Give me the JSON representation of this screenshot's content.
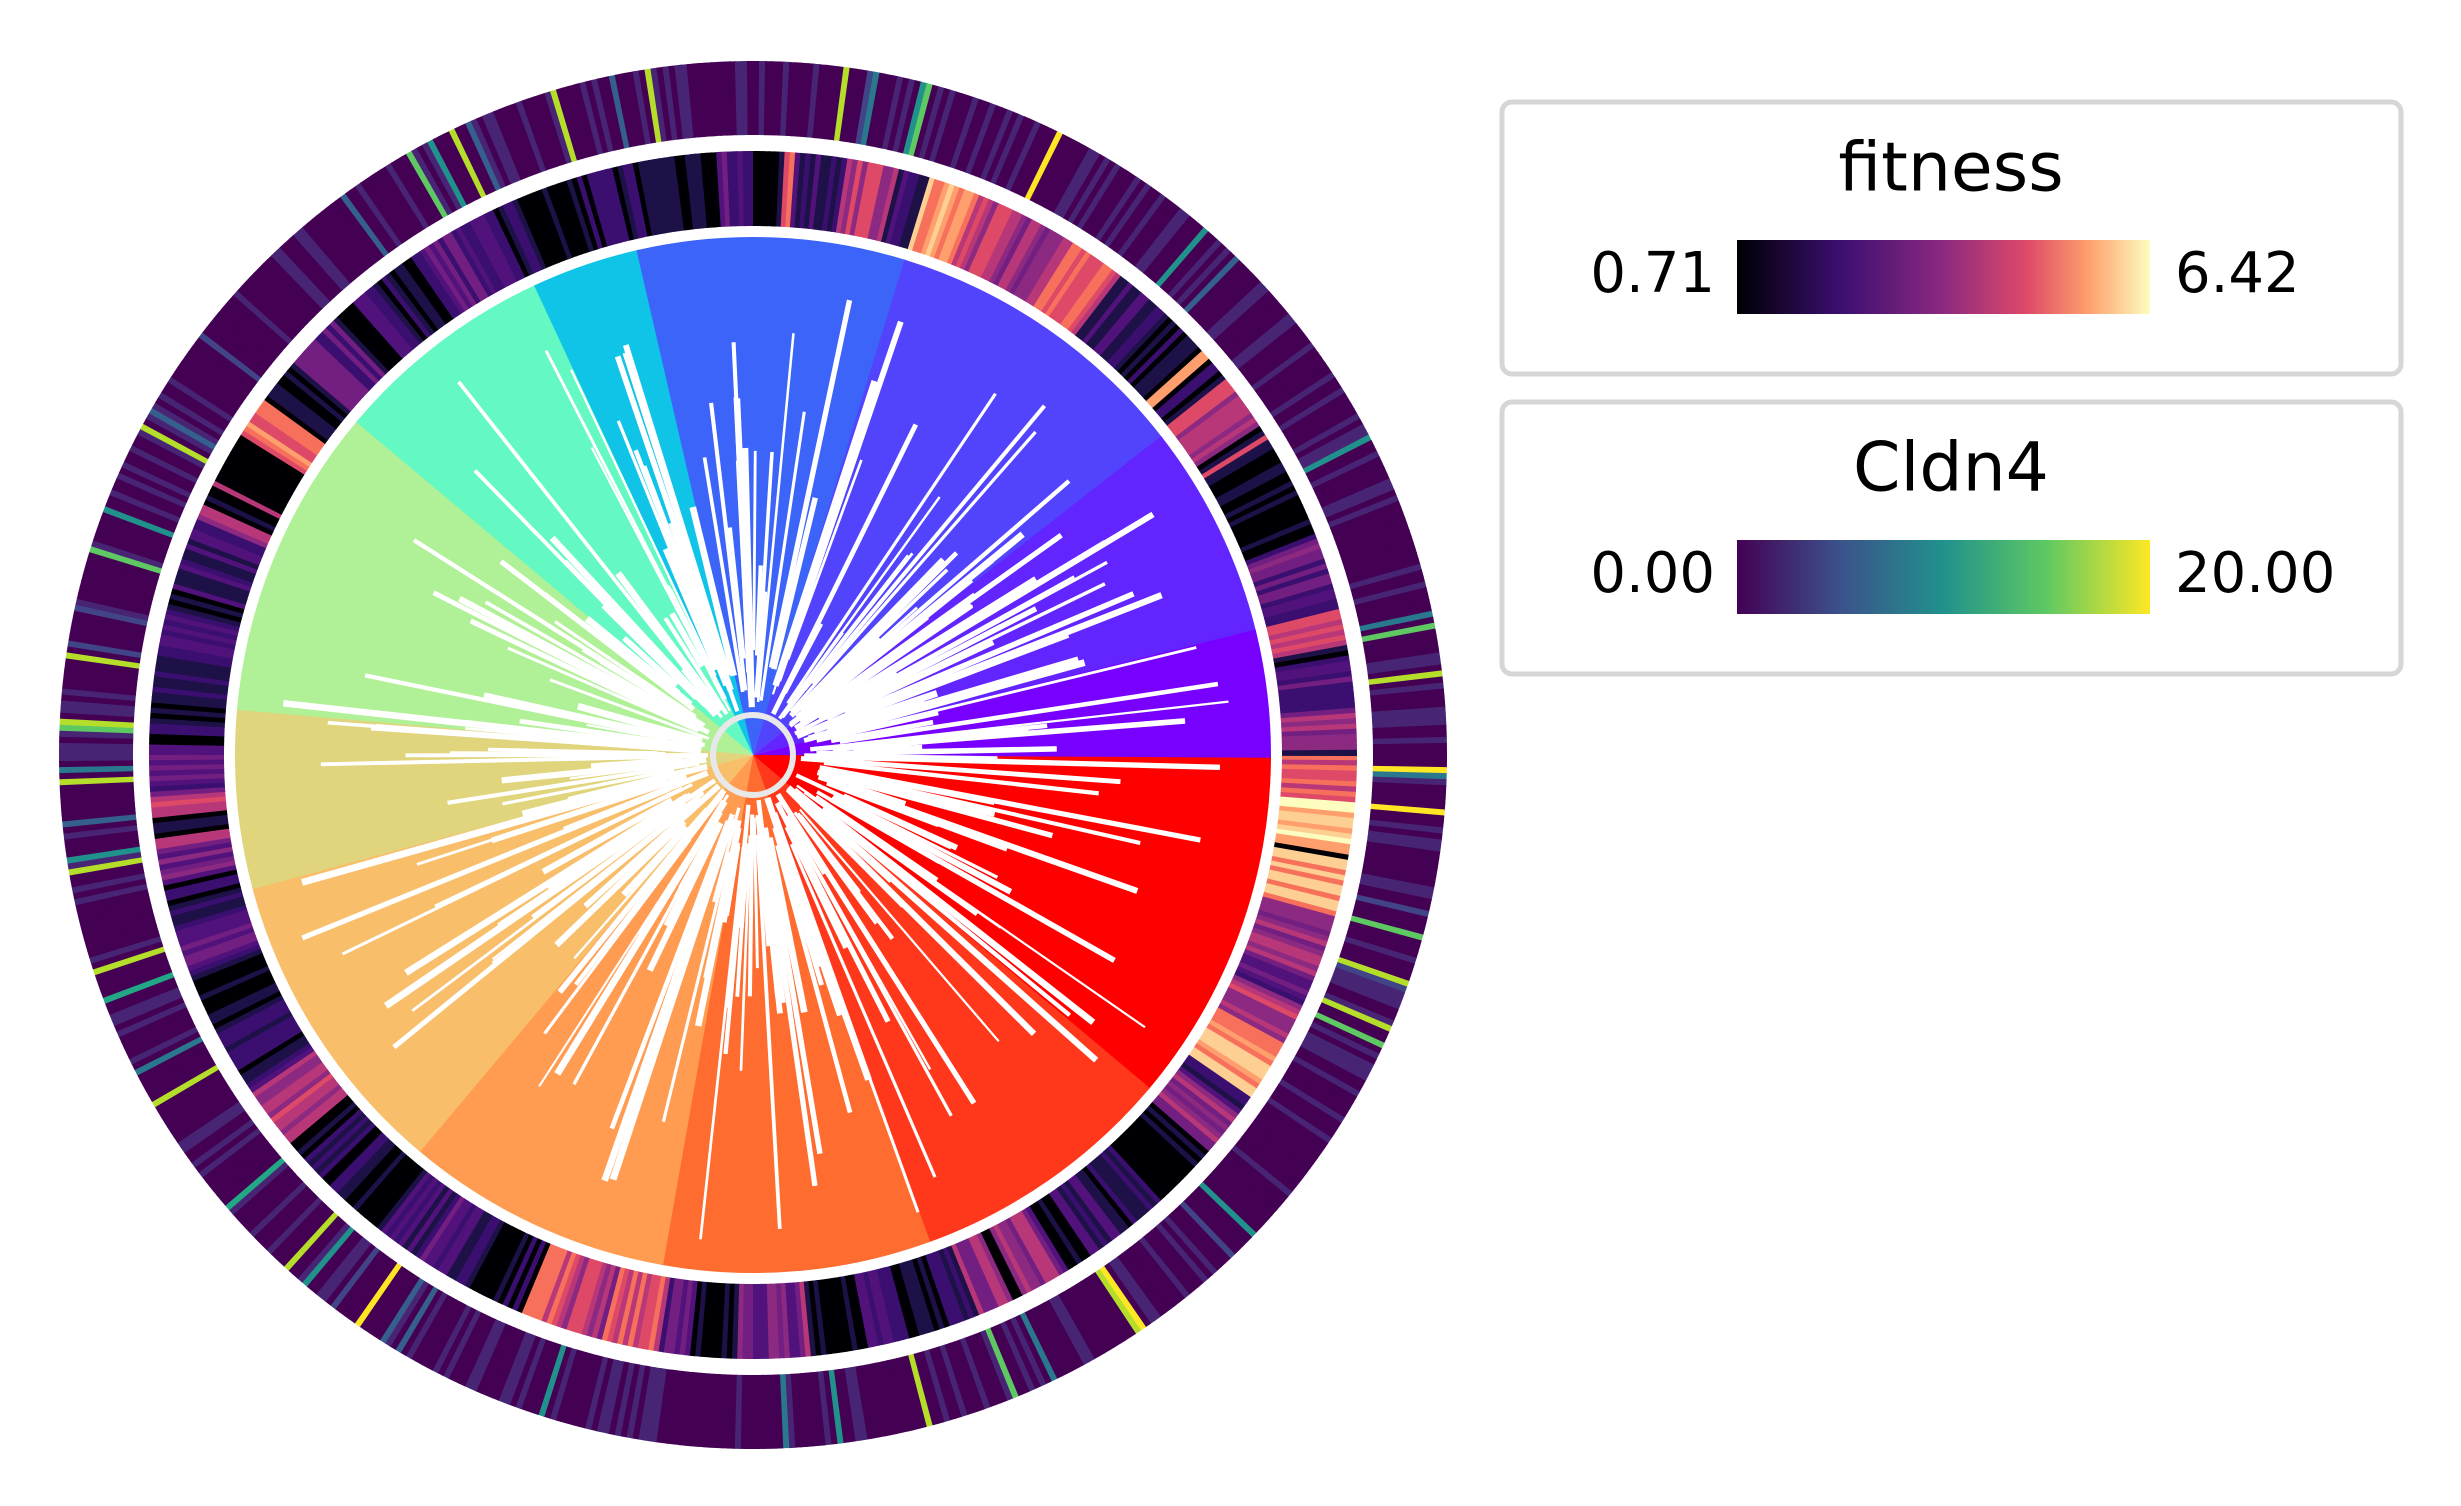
{
  "legends": [
    {
      "title": "fitness",
      "min_label": "0.71",
      "max_label": "6.42"
    },
    {
      "title": "Cldn4",
      "min_label": "0.00",
      "max_label": "20.00"
    }
  ]
}
